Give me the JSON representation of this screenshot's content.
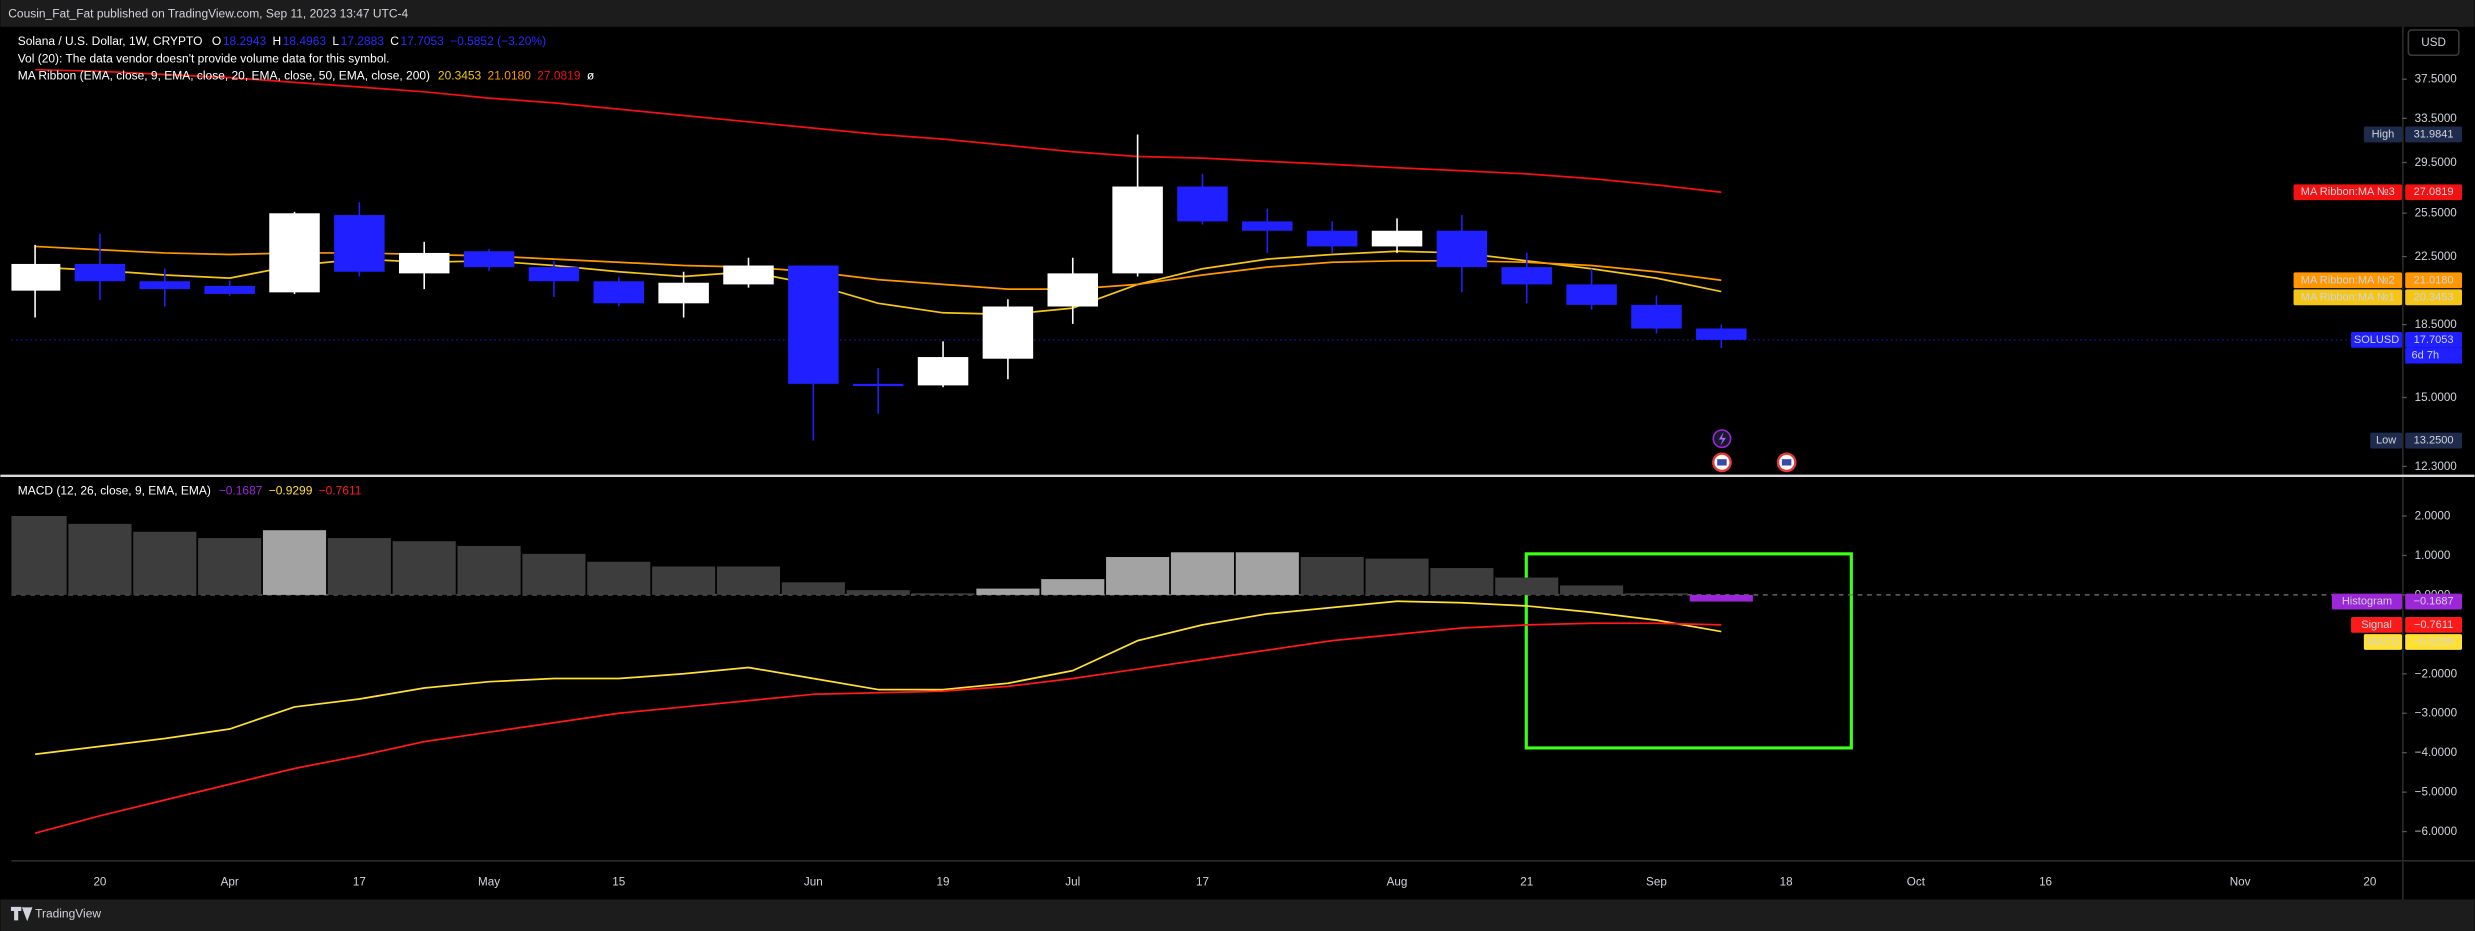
{
  "page": {
    "publisher_line": "Cousin_Fat_Fat published on TradingView.com, Sep 11, 2023 13:47 UTC-4",
    "brand": "TradingView"
  },
  "chart_data": [
    {
      "type": "candlestick",
      "title": "Solana / U.S. Dollar, 1W, CRYPTO",
      "ohlc_keys": [
        "O",
        "H",
        "L",
        "C"
      ],
      "change_label": "−0.5852 (−3.20%)",
      "volume_note": "Vol (20): The data vendor doesn't provide volume data for this symbol.",
      "ribbon_title": "MA Ribbon (EMA, close, 9, EMA, close, 20, EMA, close, 50, EMA, close, 200)",
      "ribbon_suffix": "ø",
      "currency": "USD",
      "symbol_tag": "SOLUSD",
      "countdown": "6d 7h",
      "categories": [
        null,
        "20",
        null,
        "Apr",
        null,
        "17",
        null,
        "May",
        null,
        "15",
        null,
        null,
        "Jun",
        null,
        "19",
        null,
        "Jul",
        null,
        "17",
        null,
        null,
        "Aug",
        null,
        "21",
        null,
        "Sep",
        null,
        "18",
        null,
        "Oct",
        null,
        "16",
        null,
        null,
        "Nov",
        null,
        "20"
      ],
      "open": [
        20.4,
        22.03,
        20.96,
        20.68,
        20.3,
        25.36,
        21.44,
        22.85,
        21.83,
        20.96,
        19.67,
        20.77,
        21.93,
        15.6,
        15.53,
        16.77,
        19.49,
        21.44,
        27.53,
        24.9,
        24.24,
        23.17,
        24.24,
        21.83,
        20.77,
        19.58,
        18.2943,
        null,
        null,
        null,
        null,
        null,
        null,
        null,
        null,
        null,
        null
      ],
      "high": [
        23.27,
        24.02,
        21.73,
        21.0,
        25.6,
        26.31,
        23.48,
        23.0,
        22.23,
        21.2,
        21.54,
        22.43,
        21.93,
        16.32,
        17.63,
        19.9,
        22.43,
        31.9841,
        28.55,
        25.83,
        24.9,
        25.12,
        25.36,
        22.74,
        21.73,
        20.12,
        18.4963,
        null,
        null,
        null,
        null,
        null,
        null,
        null,
        null,
        null,
        null
      ],
      "low": [
        18.88,
        19.85,
        19.49,
        20.1,
        20.2,
        21.25,
        20.49,
        21.6,
        20.03,
        19.5,
        18.88,
        20.58,
        13.25,
        14.31,
        15.45,
        15.81,
        18.54,
        21.25,
        24.68,
        22.74,
        22.74,
        22.74,
        20.3,
        19.67,
        19.31,
        18.04,
        17.2883,
        null,
        null,
        null,
        null,
        null,
        null,
        null,
        null,
        null,
        null
      ],
      "close": [
        22.03,
        20.96,
        20.49,
        20.21,
        25.49,
        21.54,
        22.74,
        21.83,
        20.96,
        19.67,
        20.87,
        21.93,
        15.6,
        15.5,
        16.85,
        19.49,
        21.44,
        27.53,
        24.9,
        24.24,
        23.17,
        24.24,
        21.83,
        20.77,
        19.58,
        18.2905,
        17.7053,
        null,
        null,
        null,
        null,
        null,
        null,
        null,
        null,
        null,
        null
      ],
      "up_color": "#ffffff",
      "down_color": "#1f1fff",
      "series": [
        {
          "name": "MA Ribbon:MA №1",
          "color": "#f5c518",
          "last_label": "20.3453",
          "values": [
            21.83,
            21.63,
            21.34,
            21.15,
            21.93,
            22.34,
            22.14,
            22.23,
            21.93,
            21.54,
            21.25,
            21.54,
            20.77,
            19.67,
            19.14,
            19.05,
            19.4,
            20.77,
            21.73,
            22.34,
            22.64,
            22.85,
            22.74,
            22.23,
            21.73,
            21.15,
            20.3453,
            null,
            null,
            null,
            null,
            null,
            null,
            null,
            null,
            null,
            null
          ]
        },
        {
          "name": "MA Ribbon:MA №2",
          "color": "#ff9800",
          "last_label": "21.0180",
          "values": [
            23.17,
            22.95,
            22.74,
            22.64,
            22.74,
            22.74,
            22.64,
            22.54,
            22.34,
            22.14,
            21.93,
            21.83,
            21.54,
            21.06,
            20.77,
            20.49,
            20.49,
            20.77,
            21.34,
            21.83,
            22.14,
            22.23,
            22.23,
            22.14,
            21.93,
            21.54,
            21.018,
            null,
            null,
            null,
            null,
            null,
            null,
            null,
            null,
            null,
            null
          ]
        },
        {
          "name": "MA Ribbon:MA №3",
          "color": "#f21212",
          "last_label": "27.0819",
          "values": [
            38.54,
            38.36,
            38.01,
            37.67,
            37.16,
            36.66,
            36.16,
            35.51,
            35.03,
            34.4,
            33.78,
            33.17,
            32.57,
            31.99,
            31.56,
            30.99,
            30.43,
            30.02,
            29.88,
            29.6,
            29.34,
            29.06,
            28.81,
            28.55,
            28.16,
            27.66,
            27.0819,
            null,
            null,
            null,
            null,
            null,
            null,
            null,
            null,
            null,
            null
          ]
        }
      ],
      "high_marker": {
        "name": "High",
        "value": 31.9841,
        "color": "#1e2b4d"
      },
      "low_marker": {
        "name": "Low",
        "value": 13.25,
        "label": "13.2500",
        "color": "#1e2b4d"
      },
      "log_scale": true,
      "ylim": [
        12.0,
        43.6
      ],
      "yticks": [
        {
          "value": 37.5,
          "label": "37.5000"
        },
        {
          "value": 33.5,
          "label": "33.5000"
        },
        {
          "value": 29.5,
          "label": "29.5000"
        },
        {
          "value": 25.5,
          "label": "25.5000"
        },
        {
          "value": 22.5,
          "label": "22.5000"
        },
        {
          "value": 18.5,
          "label": "18.5000"
        },
        {
          "value": 15,
          "label": "15.0000"
        },
        {
          "value": 12.3,
          "label": "12.3000"
        }
      ],
      "grid": false
    },
    {
      "type": "macd",
      "title": "MACD (12, 26, close, 9, EMA, EMA)",
      "series": [
        {
          "name": "Histogram",
          "kind": "bar",
          "color": "#9c27d8",
          "last_label": "−0.1687",
          "values": [
            2.0,
            1.8,
            1.6,
            1.44,
            1.64,
            1.44,
            1.36,
            1.24,
            1.04,
            0.84,
            0.72,
            0.72,
            0.32,
            0.12,
            0.04,
            0.16,
            0.4,
            0.96,
            1.08,
            1.08,
            0.96,
            0.92,
            0.68,
            0.44,
            0.24,
            0.04,
            -0.1687,
            null,
            null,
            null,
            null,
            null,
            null,
            null,
            null,
            null,
            null
          ],
          "colors": [
            "#3d3d3d",
            "#3d3d3d",
            "#3d3d3d",
            "#3d3d3d",
            "#a3a3a3",
            "#3d3d3d",
            "#3d3d3d",
            "#3d3d3d",
            "#3d3d3d",
            "#3d3d3d",
            "#3d3d3d",
            "#3d3d3d",
            "#3d3d3d",
            "#3d3d3d",
            "#3d3d3d",
            "#a3a3a3",
            "#a3a3a3",
            "#a3a3a3",
            "#a3a3a3",
            "#a3a3a3",
            "#3d3d3d",
            "#3d3d3d",
            "#3d3d3d",
            "#3d3d3d",
            "#3d3d3d",
            "#3d3d3d",
            "#9c27d8",
            null,
            null,
            null,
            null,
            null,
            null,
            null,
            null,
            null,
            null
          ]
        },
        {
          "name": "MACD",
          "kind": "line",
          "color": "#ffe033",
          "last_label": "−0.9299",
          "values": [
            -4.04,
            -3.84,
            -3.64,
            -3.4,
            -2.84,
            -2.64,
            -2.36,
            -2.2,
            -2.12,
            -2.12,
            -2.0,
            -1.84,
            -2.12,
            -2.4,
            -2.4,
            -2.24,
            -1.92,
            -1.16,
            -0.76,
            -0.48,
            -0.32,
            -0.16,
            -0.2,
            -0.28,
            -0.44,
            -0.64,
            -0.9299,
            null,
            null,
            null,
            null,
            null,
            null,
            null,
            null,
            null,
            null
          ]
        },
        {
          "name": "Signal",
          "kind": "line",
          "color": "#ff1a1a",
          "last_label": "−0.7611",
          "values": [
            -6.04,
            -5.6,
            -5.2,
            -4.8,
            -4.4,
            -4.08,
            -3.72,
            -3.48,
            -3.24,
            -3.0,
            -2.84,
            -2.68,
            -2.52,
            -2.48,
            -2.44,
            -2.32,
            -2.12,
            -1.88,
            -1.64,
            -1.4,
            -1.16,
            -1.0,
            -0.84,
            -0.76,
            -0.72,
            -0.72,
            -0.7611,
            null,
            null,
            null,
            null,
            null,
            null,
            null,
            null,
            null,
            null
          ]
        }
      ],
      "ylim": [
        -6.72,
        2.96
      ],
      "yticks": [
        {
          "value": 2,
          "label": "2.0000"
        },
        {
          "value": 1,
          "label": "1.0000"
        },
        {
          "value": 0,
          "label": "0.0000"
        },
        {
          "value": -2,
          "label": "−2.0000"
        },
        {
          "value": -3,
          "label": "−3.0000"
        },
        {
          "value": -4,
          "label": "−4.0000"
        },
        {
          "value": -5,
          "label": "−5.0000"
        },
        {
          "value": -6,
          "label": "−6.0000"
        }
      ],
      "zero_line": true
    }
  ]
}
